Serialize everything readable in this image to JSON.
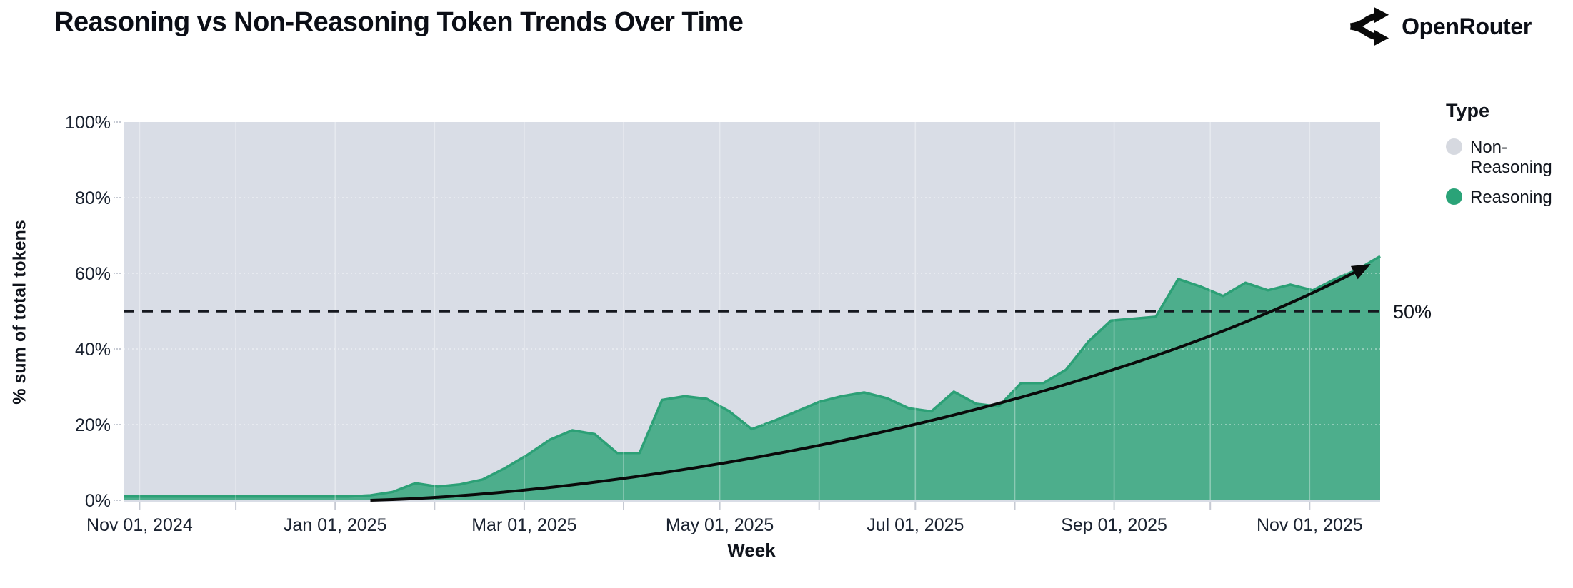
{
  "header": {
    "title": "Reasoning vs Non-Reasoning Token Trends Over Time",
    "brand": "OpenRouter"
  },
  "chart_data": {
    "type": "area",
    "stacked_percentage": true,
    "title": "Reasoning vs Non-Reasoning Token Trends Over Time",
    "xlabel": "Week",
    "ylabel": "% sum of total tokens",
    "ylim": [
      0,
      100
    ],
    "grid": "monthly vertical + 20% horizontal, on",
    "legend_position": "right",
    "legend": {
      "title": "Type",
      "entries": [
        {
          "label": "Non-Reasoning",
          "color": "#d6d9e0"
        },
        {
          "label": "Reasoning",
          "color": "#2aa378"
        }
      ]
    },
    "colors": {
      "reasoning_fill": "#4dae8c",
      "reasoning_stroke": "#2ca076",
      "non_reasoning_area": "#d9dde6",
      "reference_line": "#15181f",
      "trend_arrow": "#0a0a0a"
    },
    "y_ticks": [
      {
        "label": "0%",
        "value": 0
      },
      {
        "label": "20%",
        "value": 20
      },
      {
        "label": "40%",
        "value": 40
      },
      {
        "label": "60%",
        "value": 60
      },
      {
        "label": "80%",
        "value": 80
      },
      {
        "label": "100%",
        "value": 100
      }
    ],
    "x_ticks": [
      {
        "label": "Nov 01, 2024",
        "date": "2024-11-01"
      },
      {
        "label": "Jan 01, 2025",
        "date": "2025-01-01"
      },
      {
        "label": "Mar 01, 2025",
        "date": "2025-03-01"
      },
      {
        "label": "May 01, 2025",
        "date": "2025-05-01"
      },
      {
        "label": "Jul 01, 2025",
        "date": "2025-07-01"
      },
      {
        "label": "Sep 01, 2025",
        "date": "2025-09-01"
      },
      {
        "label": "Nov 01, 2025",
        "date": "2025-11-01"
      }
    ],
    "x_minor_ticks": [
      "2024-11-01",
      "2024-12-01",
      "2025-01-01",
      "2025-02-01",
      "2025-03-01",
      "2025-04-01",
      "2025-05-01",
      "2025-06-01",
      "2025-07-01",
      "2025-08-01",
      "2025-09-01",
      "2025-10-01",
      "2025-11-01"
    ],
    "annotation": {
      "label": "50%",
      "value": 50,
      "style": "dashed"
    },
    "trend_arrow": {
      "start_date": "2025-01-12",
      "start_value": 0,
      "end_date": "2025-11-19",
      "end_value": 62
    },
    "series": [
      {
        "name": "Reasoning",
        "weeks": [
          "2024-10-27",
          "2024-11-03",
          "2024-11-10",
          "2024-11-17",
          "2024-11-24",
          "2024-12-01",
          "2024-12-08",
          "2024-12-15",
          "2024-12-22",
          "2024-12-29",
          "2025-01-05",
          "2025-01-12",
          "2025-01-19",
          "2025-01-26",
          "2025-02-02",
          "2025-02-09",
          "2025-02-16",
          "2025-02-23",
          "2025-03-02",
          "2025-03-09",
          "2025-03-16",
          "2025-03-23",
          "2025-03-30",
          "2025-04-06",
          "2025-04-13",
          "2025-04-20",
          "2025-04-27",
          "2025-05-04",
          "2025-05-11",
          "2025-05-18",
          "2025-05-25",
          "2025-06-01",
          "2025-06-08",
          "2025-06-15",
          "2025-06-22",
          "2025-06-29",
          "2025-07-06",
          "2025-07-13",
          "2025-07-20",
          "2025-07-27",
          "2025-08-03",
          "2025-08-10",
          "2025-08-17",
          "2025-08-24",
          "2025-08-31",
          "2025-09-07",
          "2025-09-14",
          "2025-09-21",
          "2025-09-28",
          "2025-10-05",
          "2025-10-12",
          "2025-10-19",
          "2025-10-26",
          "2025-11-02",
          "2025-11-09",
          "2025-11-16",
          "2025-11-23"
        ],
        "values": [
          1,
          1,
          1,
          1,
          1,
          1,
          1,
          1,
          1,
          1,
          1,
          1.3,
          2.2,
          4.5,
          3.6,
          4.2,
          5.5,
          8.5,
          12,
          16,
          18.5,
          17.5,
          12.5,
          12.5,
          26.5,
          27.5,
          26.8,
          23.5,
          18.8,
          21,
          23.5,
          26,
          27.5,
          28.5,
          27,
          24.3,
          23.5,
          28.7,
          25.5,
          24.8,
          31,
          31,
          34.5,
          42,
          47.5,
          48,
          48.5,
          58.5,
          56.5,
          54,
          57.5,
          55.5,
          57,
          55.5,
          58.5,
          61,
          64.5
        ]
      },
      {
        "name": "Non-Reasoning",
        "note": "remainder of stacked 100% above Reasoning"
      }
    ]
  }
}
